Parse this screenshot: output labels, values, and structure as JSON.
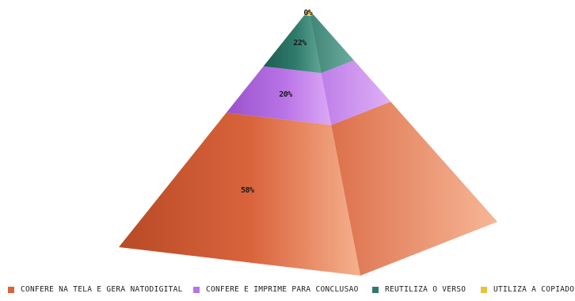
{
  "chart_data": {
    "type": "pyramid",
    "title": "",
    "series": [
      {
        "name": "Confere na tela e gera natodigital",
        "value": 58,
        "label": "58%",
        "color": "#d9643c",
        "dark": "#b84a26",
        "light": "#f6b08d"
      },
      {
        "name": "Confere e imprime para conclusão",
        "value": 20,
        "label": "20%",
        "color": "#b873e6",
        "dark": "#9a52cc",
        "light": "#dca8f5"
      },
      {
        "name": "Reutiliza o verso",
        "value": 22,
        "label": "22%",
        "color": "#2f7a6c",
        "dark": "#1f5c52",
        "light": "#5fa595"
      },
      {
        "name": "Utiliza a copiadora",
        "value": 0,
        "label": "0%",
        "color": "#e8c23a",
        "dark": "#c9a21f",
        "light": "#f3dc7a"
      }
    ],
    "legend_placement": "bottom",
    "legend": [
      "Confere na tela e gera natodigital",
      "Confere e imprime para conclusão",
      "Reutiliza o verso",
      "Utiliza a copiadora"
    ]
  }
}
